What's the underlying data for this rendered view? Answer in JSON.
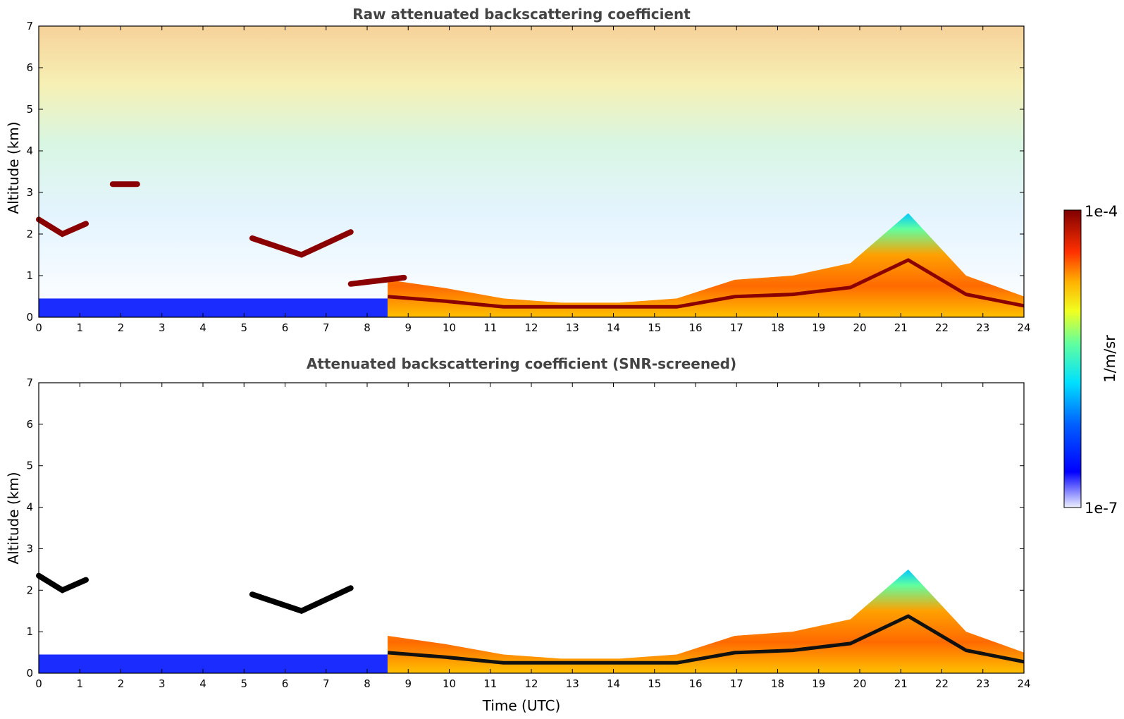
{
  "chart_data": [
    {
      "type": "heatmap",
      "title": "Raw attenuated backscattering coefficient",
      "xlabel": "",
      "ylabel": "Altitude (km)",
      "xlim": [
        0,
        24
      ],
      "ylim": [
        0,
        7
      ],
      "x_ticks": [
        0,
        1,
        2,
        3,
        4,
        5,
        6,
        7,
        8,
        9,
        10,
        11,
        12,
        13,
        14,
        15,
        16,
        17,
        18,
        19,
        20,
        21,
        22,
        23,
        24
      ],
      "y_ticks": [
        0,
        1,
        2,
        3,
        4,
        5,
        6,
        7
      ],
      "features": [
        {
          "kind": "surface-layer",
          "x_range": [
            0,
            8.5
          ],
          "alt_top_km": 0.45,
          "level": 0.1
        },
        {
          "kind": "boundary-layer",
          "x_range": [
            8.5,
            24
          ],
          "alt_top_km": [
            0.9,
            0.7,
            0.45,
            0.35,
            0.35,
            0.45,
            0.9,
            1.0,
            1.3,
            2.5,
            1.0,
            0.5
          ],
          "level": 0.7
        },
        {
          "kind": "cloud-layer",
          "x": [
            0,
            1.15
          ],
          "alt_km": [
            2.35,
            2.0,
            2.25
          ],
          "level": 1.0
        },
        {
          "kind": "cloud-layer",
          "x": [
            1.8,
            2.4
          ],
          "alt_km": 3.2,
          "level": 1.0
        },
        {
          "kind": "cloud-layer",
          "x": [
            5.2,
            7.6
          ],
          "alt_km": [
            1.9,
            1.5,
            2.05
          ],
          "level": 1.0
        },
        {
          "kind": "cloud-layer",
          "x": [
            7.6,
            8.9
          ],
          "alt_km": [
            0.8,
            0.95
          ],
          "level": 1.0
        }
      ]
    },
    {
      "type": "heatmap",
      "title": "Attenuated backscattering coefficient (SNR-screened)",
      "xlabel": "Time (UTC)",
      "ylabel": "Altitude (km)",
      "xlim": [
        0,
        24
      ],
      "ylim": [
        0,
        7
      ],
      "x_ticks": [
        0,
        1,
        2,
        3,
        4,
        5,
        6,
        7,
        8,
        9,
        10,
        11,
        12,
        13,
        14,
        15,
        16,
        17,
        18,
        19,
        20,
        21,
        22,
        23,
        24
      ],
      "y_ticks": [
        0,
        1,
        2,
        3,
        4,
        5,
        6,
        7
      ],
      "features": [
        {
          "kind": "surface-layer",
          "x_range": [
            0,
            8.5
          ],
          "alt_top_km": 0.45,
          "level": 0.1
        },
        {
          "kind": "boundary-layer",
          "x_range": [
            8.5,
            24
          ],
          "alt_top_km": [
            0.9,
            0.7,
            0.45,
            0.35,
            0.35,
            0.45,
            0.9,
            1.0,
            1.3,
            2.5,
            1.0,
            0.5
          ],
          "level": 0.7
        },
        {
          "kind": "screened-cloud",
          "x": [
            0,
            1.15
          ],
          "alt_km": [
            2.35,
            2.0,
            2.25
          ],
          "color": "black"
        },
        {
          "kind": "screened-cloud",
          "x": [
            5.2,
            7.6
          ],
          "alt_km": [
            1.9,
            1.5,
            2.05
          ],
          "color": "black"
        }
      ]
    }
  ],
  "colorbar": {
    "label": "1/m/sr",
    "max_label": "1e-4",
    "min_label": "1e-7",
    "colors": [
      "#7f0000",
      "#ff0000",
      "#ff8000",
      "#ffff00",
      "#80ff80",
      "#00ffff",
      "#0080ff",
      "#0000ff",
      "#eef0ff"
    ]
  }
}
